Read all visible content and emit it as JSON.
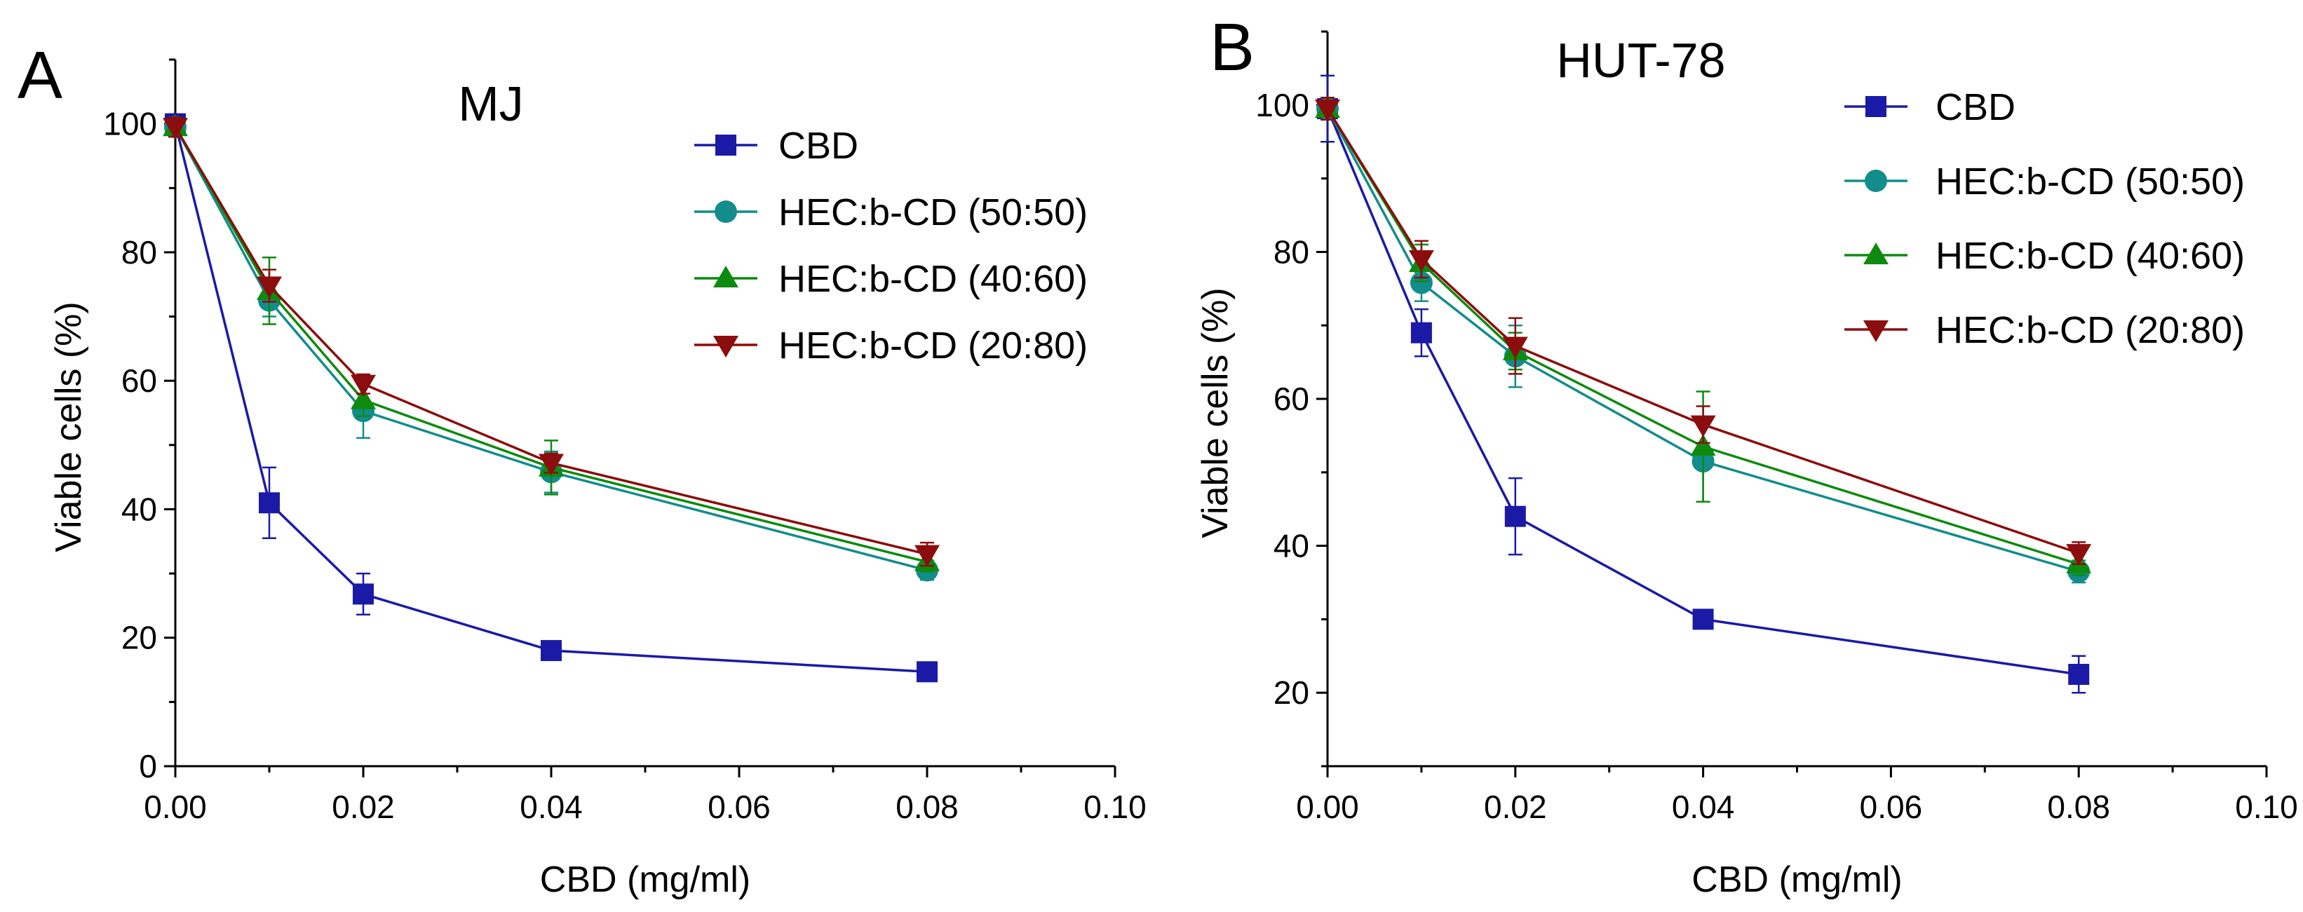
{
  "figure": {
    "colors": {
      "CBD": "#1a1aa6",
      "HEC50": "#138c8c",
      "HEC40": "#0e8a0e",
      "HEC20": "#8b0d0d",
      "axis": "#000000"
    },
    "series_order": [
      "CBD",
      "HEC50",
      "HEC40",
      "HEC20"
    ],
    "series_markers": {
      "CBD": "square",
      "HEC50": "circle",
      "HEC40": "triangle-up",
      "HEC20": "triangle-down"
    }
  },
  "chart_data": [
    {
      "type": "line",
      "panel_letter": "A",
      "title": "MJ",
      "xlabel": "CBD (mg/ml)",
      "ylabel": "Viable cells (%)",
      "xlim": [
        0,
        0.1
      ],
      "ylim": [
        0,
        110
      ],
      "x_ticks": [
        0,
        0.02,
        0.04,
        0.06,
        0.08,
        0.1
      ],
      "x_tick_labels": [
        "0.00",
        "0.02",
        "0.04",
        "0.06",
        "0.08",
        "0.10"
      ],
      "y_ticks": [
        0,
        20,
        40,
        60,
        80,
        100
      ],
      "y_tick_labels": [
        "0",
        "20",
        "40",
        "60",
        "80",
        "100"
      ],
      "grid": false,
      "legend_position": "top-right",
      "x": [
        0,
        0.01,
        0.02,
        0.04,
        0.08
      ],
      "series": [
        {
          "key": "CBD",
          "name": "CBD",
          "values": [
            100,
            41,
            26.8,
            18,
            14.7
          ],
          "errors": [
            1.5,
            5.5,
            3.2,
            1,
            1
          ]
        },
        {
          "key": "HEC50",
          "name": "HEC:b-CD (50:50)",
          "values": [
            99.5,
            72.5,
            55.3,
            45.8,
            30.5
          ],
          "errors": [
            1.5,
            2.5,
            4.2,
            3.2,
            1.5
          ]
        },
        {
          "key": "HEC40",
          "name": "HEC:b-CD (40:60)",
          "values": [
            99.5,
            74,
            57,
            46.5,
            31.8
          ],
          "errors": [
            1.5,
            5.2,
            2.5,
            4.2,
            1.5
          ]
        },
        {
          "key": "HEC20",
          "name": "HEC:b-CD (20:80)",
          "values": [
            99.5,
            74.8,
            59.5,
            47.2,
            33
          ],
          "errors": [
            1.5,
            2.5,
            1.5,
            1.5,
            1.8
          ]
        }
      ]
    },
    {
      "type": "line",
      "panel_letter": "B",
      "title": "HUT-78",
      "xlabel": "CBD (mg/ml)",
      "ylabel": "Viable cells (%)",
      "xlim": [
        0,
        0.1
      ],
      "ylim": [
        10,
        110
      ],
      "x_ticks": [
        0,
        0.02,
        0.04,
        0.06,
        0.08,
        0.1
      ],
      "x_tick_labels": [
        "0.00",
        "0.02",
        "0.04",
        "0.06",
        "0.08",
        "0.10"
      ],
      "y_ticks": [
        20,
        40,
        60,
        80,
        100
      ],
      "y_tick_labels": [
        "20",
        "40",
        "60",
        "80",
        "100"
      ],
      "grid": false,
      "legend_position": "top-right",
      "x": [
        0,
        0.01,
        0.02,
        0.04,
        0.08
      ],
      "series": [
        {
          "key": "CBD",
          "name": "CBD",
          "values": [
            99.5,
            69,
            44,
            30,
            22.5
          ],
          "errors": [
            4.5,
            3.2,
            5.2,
            1,
            2.5
          ]
        },
        {
          "key": "HEC50",
          "name": "HEC:b-CD (50:50)",
          "values": [
            99.5,
            75.8,
            65.8,
            51.5,
            36.5
          ],
          "errors": [
            1.5,
            2.5,
            4.2,
            5.5,
            1.5
          ]
        },
        {
          "key": "HEC40",
          "name": "HEC:b-CD (40:60)",
          "values": [
            99.5,
            78.5,
            66.5,
            53.5,
            37.5
          ],
          "errors": [
            1.5,
            2.5,
            2.5,
            7.5,
            1.5
          ]
        },
        {
          "key": "HEC20",
          "name": "HEC:b-CD (20:80)",
          "values": [
            99.5,
            79,
            67.2,
            56.5,
            39
          ],
          "errors": [
            1.5,
            2.5,
            3.8,
            2.5,
            1.5
          ]
        }
      ]
    }
  ]
}
